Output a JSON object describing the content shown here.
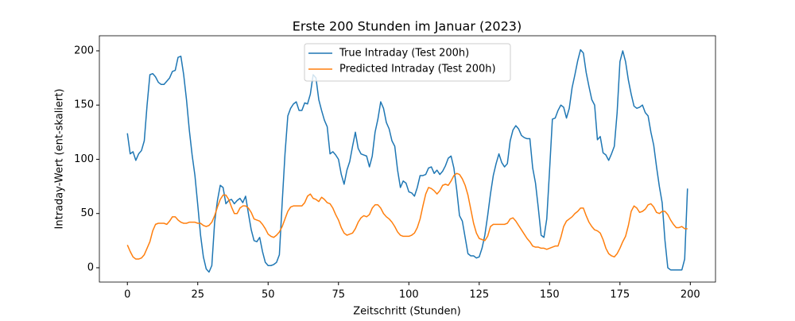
{
  "chart_data": {
    "type": "line",
    "title": "Erste 200 Stunden im Januar (2023)",
    "xlabel": "Zeitschritt (Stunden)",
    "ylabel": "Intraday-Wert (ent-skaliert)",
    "x": [
      0,
      1,
      2,
      3,
      4,
      5,
      6,
      7,
      8,
      9,
      10,
      11,
      12,
      13,
      14,
      15,
      16,
      17,
      18,
      19,
      20,
      21,
      22,
      23,
      24,
      25,
      26,
      27,
      28,
      29,
      30,
      31,
      32,
      33,
      34,
      35,
      36,
      37,
      38,
      39,
      40,
      41,
      42,
      43,
      44,
      45,
      46,
      47,
      48,
      49,
      50,
      51,
      52,
      53,
      54,
      55,
      56,
      57,
      58,
      59,
      60,
      61,
      62,
      63,
      64,
      65,
      66,
      67,
      68,
      69,
      70,
      71,
      72,
      73,
      74,
      75,
      76,
      77,
      78,
      79,
      80,
      81,
      82,
      83,
      84,
      85,
      86,
      87,
      88,
      89,
      90,
      91,
      92,
      93,
      94,
      95,
      96,
      97,
      98,
      99,
      100,
      101,
      102,
      103,
      104,
      105,
      106,
      107,
      108,
      109,
      110,
      111,
      112,
      113,
      114,
      115,
      116,
      117,
      118,
      119,
      120,
      121,
      122,
      123,
      124,
      125,
      126,
      127,
      128,
      129,
      130,
      131,
      132,
      133,
      134,
      135,
      136,
      137,
      138,
      139,
      140,
      141,
      142,
      143,
      144,
      145,
      146,
      147,
      148,
      149,
      150,
      151,
      152,
      153,
      154,
      155,
      156,
      157,
      158,
      159,
      160,
      161,
      162,
      163,
      164,
      165,
      166,
      167,
      168,
      169,
      170,
      171,
      172,
      173,
      174,
      175,
      176,
      177,
      178,
      179,
      180,
      181,
      182,
      183,
      184,
      185,
      186,
      187,
      188,
      189,
      190,
      191,
      192,
      193,
      194,
      195,
      196,
      197,
      198,
      199
    ],
    "series": [
      {
        "name": "True Intraday (Test 200h)",
        "color": "#1f77b4",
        "values": [
          124,
          105,
          107,
          99,
          105,
          108,
          117,
          150,
          178,
          179,
          176,
          171,
          169,
          169,
          172,
          175,
          181,
          182,
          194,
          195,
          178,
          155,
          127,
          104,
          85,
          58,
          30,
          10,
          -1,
          -4,
          2,
          42,
          62,
          76,
          74,
          59,
          62,
          63,
          59,
          62,
          64,
          60,
          66,
          50,
          35,
          25,
          24,
          28,
          15,
          5,
          2,
          2,
          3,
          5,
          12,
          60,
          105,
          140,
          147,
          151,
          153,
          145,
          145,
          152,
          151,
          160,
          178,
          175,
          155,
          145,
          136,
          130,
          105,
          107,
          104,
          100,
          86,
          77,
          90,
          98,
          112,
          125,
          110,
          105,
          104,
          103,
          93,
          103,
          125,
          137,
          153,
          147,
          134,
          128,
          117,
          112,
          90,
          74,
          80,
          78,
          70,
          69,
          66,
          74,
          85,
          85,
          86,
          92,
          93,
          87,
          90,
          86,
          89,
          94,
          101,
          103,
          92,
          72,
          48,
          43,
          28,
          13,
          11,
          11,
          9,
          10,
          18,
          30,
          48,
          68,
          85,
          96,
          105,
          97,
          93,
          96,
          117,
          127,
          131,
          128,
          122,
          120,
          119,
          119,
          92,
          78,
          55,
          30,
          28,
          45,
          90,
          137,
          138,
          145,
          150,
          148,
          138,
          147,
          166,
          178,
          191,
          201,
          198,
          180,
          167,
          155,
          150,
          118,
          121,
          106,
          104,
          99,
          105,
          112,
          143,
          190,
          200,
          190,
          173,
          160,
          149,
          147,
          148,
          150,
          143,
          140,
          125,
          113,
          93,
          75,
          60,
          25,
          0,
          -2,
          -2,
          -2,
          -2,
          -2,
          8,
          73
        ]
      },
      {
        "name": "Predicted Intraday (Test 200h)",
        "color": "#ff7f0e",
        "values": [
          21,
          15,
          10,
          8,
          8,
          9,
          12,
          18,
          24,
          34,
          40,
          41,
          41,
          41,
          40,
          43,
          47,
          47,
          44,
          42,
          41,
          41,
          42,
          42,
          42,
          41,
          41,
          39,
          38,
          39,
          42,
          48,
          56,
          63,
          67,
          67,
          63,
          56,
          50,
          50,
          55,
          57,
          57,
          55,
          51,
          45,
          44,
          43,
          40,
          36,
          31,
          29,
          28,
          30,
          33,
          38,
          45,
          52,
          56,
          57,
          57,
          57,
          57,
          60,
          66,
          68,
          64,
          63,
          61,
          65,
          63,
          60,
          59,
          55,
          49,
          44,
          37,
          32,
          30,
          31,
          32,
          36,
          42,
          46,
          48,
          47,
          49,
          55,
          58,
          58,
          55,
          50,
          47,
          45,
          42,
          38,
          33,
          30,
          29,
          29,
          29,
          30,
          32,
          37,
          45,
          57,
          68,
          74,
          73,
          71,
          68,
          71,
          76,
          77,
          76,
          80,
          85,
          87,
          86,
          82,
          76,
          67,
          54,
          41,
          32,
          27,
          26,
          25,
          29,
          38,
          40,
          40,
          40,
          40,
          40,
          41,
          45,
          46,
          43,
          39,
          35,
          31,
          27,
          24,
          20,
          19,
          19,
          18,
          18,
          17,
          18,
          19,
          20,
          20,
          28,
          38,
          43,
          45,
          47,
          50,
          52,
          55,
          55,
          48,
          42,
          38,
          35,
          34,
          32,
          26,
          18,
          13,
          11,
          10,
          13,
          18,
          24,
          29,
          39,
          52,
          57,
          55,
          51,
          52,
          54,
          58,
          59,
          56,
          51,
          50,
          52,
          52,
          49,
          44,
          40,
          37,
          37,
          38,
          36,
          36
        ]
      }
    ],
    "xlim": [
      -9.95,
      208.95
    ],
    "ylim": [
      -13.2,
      213.9
    ],
    "xticks": [
      0,
      25,
      50,
      75,
      100,
      125,
      150,
      175,
      200
    ],
    "yticks": [
      0,
      50,
      100,
      150,
      200
    ],
    "grid": false,
    "legend": "upper center"
  }
}
